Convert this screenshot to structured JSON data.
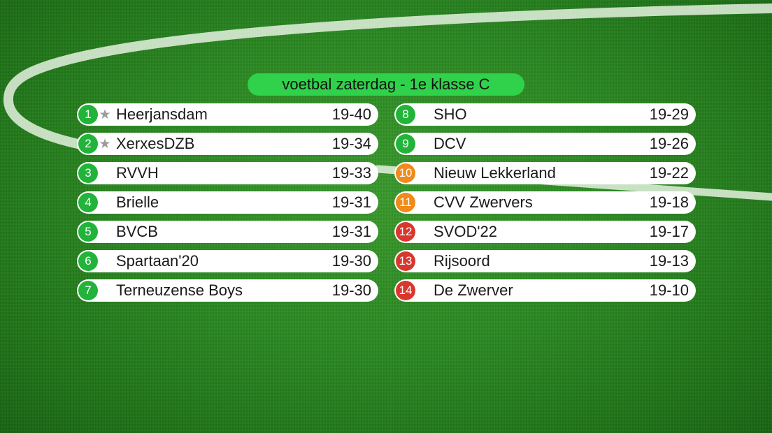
{
  "header": {
    "title": "voetbal zaterdag - 1e klasse C"
  },
  "colors": {
    "green": "#22b43a",
    "orange": "#f08a1a",
    "red": "#d8372e",
    "title_bg": "#2fd24a"
  },
  "standings": [
    {
      "rank": "1",
      "team": "Heerjansdam",
      "score": "19-40",
      "status": "green",
      "icon": "star-icon"
    },
    {
      "rank": "2",
      "team": "XerxesDZB",
      "score": "19-34",
      "status": "green",
      "icon": "star-icon"
    },
    {
      "rank": "3",
      "team": "RVVH",
      "score": "19-33",
      "status": "green"
    },
    {
      "rank": "4",
      "team": "Brielle",
      "score": "19-31",
      "status": "green"
    },
    {
      "rank": "5",
      "team": "BVCB",
      "score": "19-31",
      "status": "green"
    },
    {
      "rank": "6",
      "team": "Spartaan'20",
      "score": "19-30",
      "status": "green"
    },
    {
      "rank": "7",
      "team": "Terneuzense Boys",
      "score": "19-30",
      "status": "green"
    },
    {
      "rank": "8",
      "team": "SHO",
      "score": "19-29",
      "status": "green"
    },
    {
      "rank": "9",
      "team": "DCV",
      "score": "19-26",
      "status": "green"
    },
    {
      "rank": "10",
      "team": "Nieuw Lekkerland",
      "score": "19-22",
      "status": "orange"
    },
    {
      "rank": "11",
      "team": "CVV Zwervers",
      "score": "19-18",
      "status": "orange"
    },
    {
      "rank": "12",
      "team": "SVOD'22",
      "score": "19-17",
      "status": "red"
    },
    {
      "rank": "13",
      "team": "Rijsoord",
      "score": "19-13",
      "status": "red"
    },
    {
      "rank": "14",
      "team": "De Zwerver",
      "score": "19-10",
      "status": "red"
    }
  ]
}
